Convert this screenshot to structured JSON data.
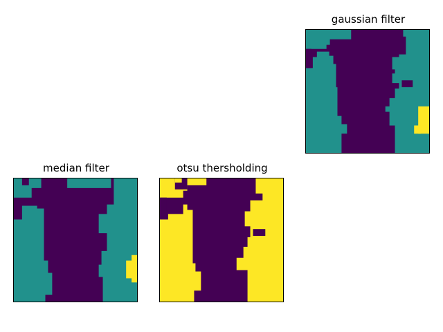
{
  "figure": {
    "panels": [
      {
        "id": "gaussian",
        "title": "gaussian filter",
        "palette": {
          "dark": "#440154",
          "mid": "#21918c",
          "bright": "#fde725"
        }
      },
      {
        "id": "median",
        "title": "median filter",
        "palette": {
          "dark": "#440154",
          "mid": "#21918c",
          "bright": "#fde725"
        }
      },
      {
        "id": "otsu",
        "title": "otsu thersholding",
        "palette": {
          "dark": "#440154",
          "bright": "#fde725"
        }
      }
    ]
  }
}
